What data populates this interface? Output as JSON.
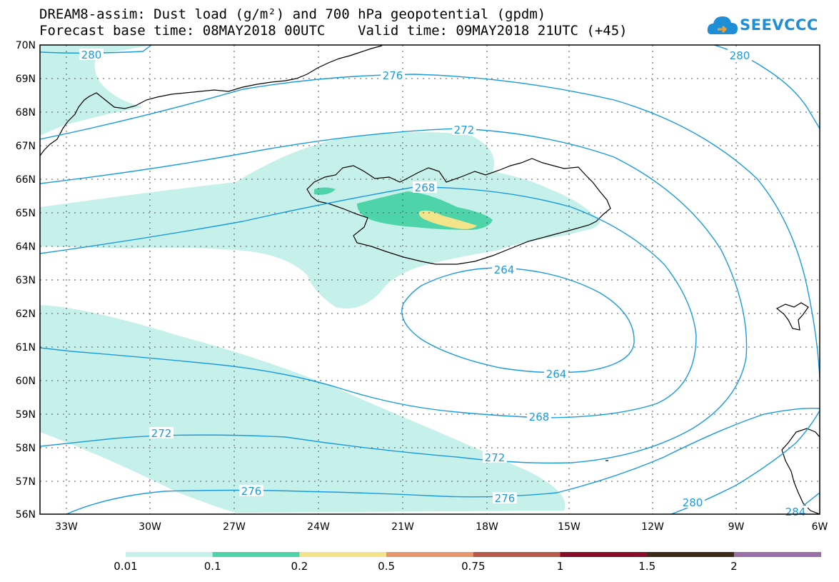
{
  "header": {
    "title_line1": "DREAM8-assim: Dust load (g/m²) and 700 hPa geopotential (gpdm)",
    "title_line2": "Forecast base time: 08MAY2018 00UTC    Valid time: 09MAY2018 21UTC (+45)"
  },
  "logo": {
    "text": "SEEVCCC",
    "icon": "cloud-icon"
  },
  "map": {
    "lon_labels": [
      "33W",
      "30W",
      "27W",
      "24W",
      "21W",
      "18W",
      "15W",
      "12W",
      "9W",
      "6W"
    ],
    "lat_labels": [
      "70N",
      "69N",
      "68N",
      "67N",
      "66N",
      "65N",
      "64N",
      "63N",
      "62N",
      "61N",
      "60N",
      "59N",
      "58N",
      "57N",
      "56N"
    ],
    "contour_labels": [
      "280",
      "276",
      "272",
      "268",
      "264",
      "264",
      "268",
      "272",
      "272",
      "276",
      "276",
      "280",
      "280",
      "284"
    ],
    "contour_color": "#1a9be0",
    "coast_color": "#000000"
  },
  "legend": {
    "colors": [
      "#c6f0ea",
      "#4dd4a8",
      "#f3e48a",
      "#e8966e",
      "#b85a4a",
      "#880b2a",
      "#3b2a16",
      "#9a70a8"
    ],
    "labels": [
      "0.01",
      "0.1",
      "0.2",
      "0.5",
      "0.75",
      "1",
      "1.5",
      "2"
    ]
  }
}
